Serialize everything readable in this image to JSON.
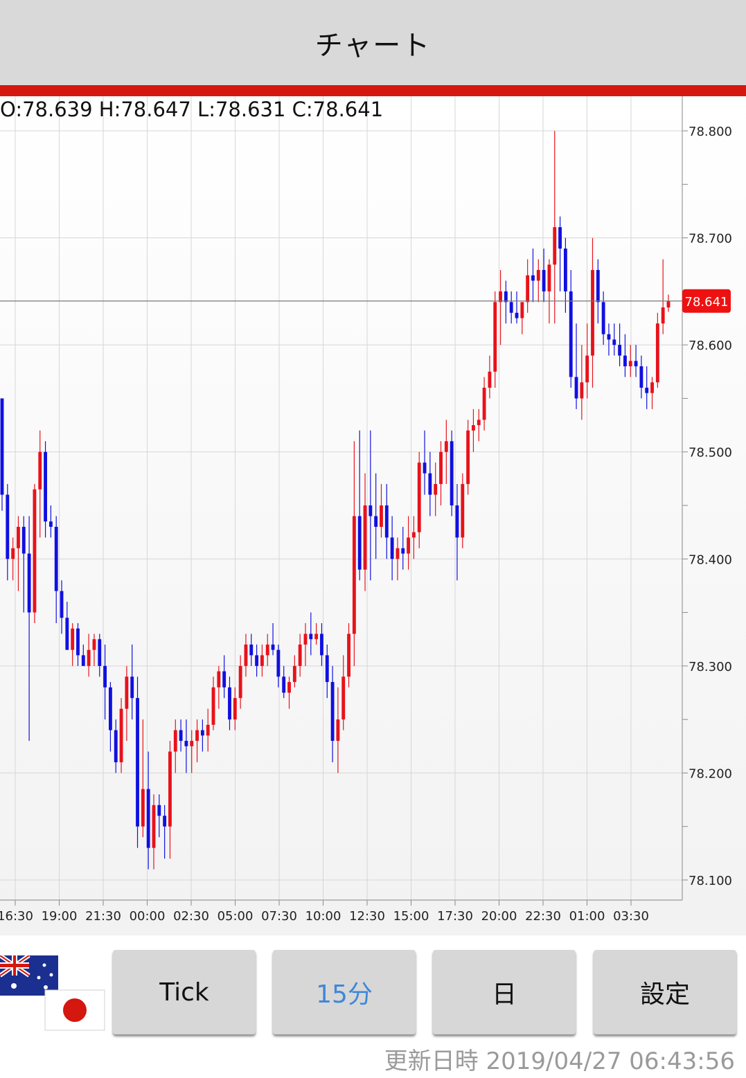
{
  "header": {
    "title": "チャート"
  },
  "ohlc": {
    "text": "O:78.639 H:78.647 L:78.631 C:78.641"
  },
  "colors": {
    "up": "#e8121a",
    "down": "#1010e0",
    "accent_bar": "#d4170f",
    "active_button": "#3e88d8"
  },
  "chart_data": {
    "type": "candlestick",
    "current_price": 78.641,
    "current_price_label": "78.641",
    "y_ticks": [
      "78.800",
      "78.700",
      "78.600",
      "78.500",
      "78.400",
      "78.300",
      "78.200",
      "78.100"
    ],
    "y_tick_values": [
      78.8,
      78.7,
      78.6,
      78.5,
      78.4,
      78.3,
      78.2,
      78.1
    ],
    "x_ticks": [
      "16:30",
      "19:00",
      "21:30",
      "00:00",
      "02:30",
      "05:00",
      "07:30",
      "10:00",
      "12:30",
      "15:00",
      "17:30",
      "20:00",
      "22:30",
      "01:00",
      "03:30"
    ],
    "ylim": [
      78.08,
      78.83
    ],
    "candles": [
      [
        78.55,
        78.55,
        78.445,
        78.46
      ],
      [
        78.46,
        78.47,
        78.38,
        78.4
      ],
      [
        78.4,
        78.42,
        78.38,
        78.41
      ],
      [
        78.41,
        78.44,
        78.37,
        78.43
      ],
      [
        78.43,
        78.44,
        78.35,
        78.405
      ],
      [
        78.405,
        78.44,
        78.23,
        78.35
      ],
      [
        78.35,
        78.47,
        78.34,
        78.465
      ],
      [
        78.465,
        78.52,
        78.42,
        78.5
      ],
      [
        78.5,
        78.51,
        78.42,
        78.435
      ],
      [
        78.435,
        78.45,
        78.42,
        78.43
      ],
      [
        78.43,
        78.44,
        78.34,
        78.37
      ],
      [
        78.37,
        78.38,
        78.33,
        78.345
      ],
      [
        78.345,
        78.36,
        78.32,
        78.315
      ],
      [
        78.315,
        78.34,
        78.3,
        78.335
      ],
      [
        78.335,
        78.34,
        78.3,
        78.31
      ],
      [
        78.31,
        78.32,
        78.3,
        78.3
      ],
      [
        78.3,
        78.33,
        78.29,
        78.315
      ],
      [
        78.315,
        78.33,
        78.3,
        78.325
      ],
      [
        78.325,
        78.33,
        78.29,
        78.3
      ],
      [
        78.3,
        78.32,
        78.25,
        78.28
      ],
      [
        78.28,
        78.285,
        78.22,
        78.24
      ],
      [
        78.24,
        78.25,
        78.2,
        78.21
      ],
      [
        78.21,
        78.27,
        78.2,
        78.26
      ],
      [
        78.26,
        78.3,
        78.23,
        78.29
      ],
      [
        78.29,
        78.32,
        78.25,
        78.27
      ],
      [
        78.27,
        78.29,
        78.13,
        78.15
      ],
      [
        78.15,
        78.25,
        78.14,
        78.185
      ],
      [
        78.185,
        78.22,
        78.11,
        78.13
      ],
      [
        78.13,
        78.18,
        78.11,
        78.17
      ],
      [
        78.17,
        78.18,
        78.14,
        78.16
      ],
      [
        78.16,
        78.17,
        78.12,
        78.15
      ],
      [
        78.15,
        78.23,
        78.12,
        78.22
      ],
      [
        78.22,
        78.25,
        78.2,
        78.24
      ],
      [
        78.24,
        78.25,
        78.22,
        78.23
      ],
      [
        78.23,
        78.25,
        78.2,
        78.225
      ],
      [
        78.225,
        78.24,
        78.2,
        78.23
      ],
      [
        78.23,
        78.25,
        78.21,
        78.24
      ],
      [
        78.24,
        78.25,
        78.22,
        78.235
      ],
      [
        78.235,
        78.26,
        78.22,
        78.245
      ],
      [
        78.245,
        78.29,
        78.24,
        78.28
      ],
      [
        78.28,
        78.3,
        78.26,
        78.295
      ],
      [
        78.295,
        78.31,
        78.27,
        78.28
      ],
      [
        78.28,
        78.29,
        78.24,
        78.25
      ],
      [
        78.25,
        78.28,
        78.24,
        78.27
      ],
      [
        78.27,
        78.31,
        78.26,
        78.3
      ],
      [
        78.3,
        78.33,
        78.29,
        78.32
      ],
      [
        78.32,
        78.33,
        78.3,
        78.31
      ],
      [
        78.31,
        78.32,
        78.29,
        78.3
      ],
      [
        78.3,
        78.32,
        78.29,
        78.31
      ],
      [
        78.31,
        78.33,
        78.3,
        78.32
      ],
      [
        78.32,
        78.34,
        78.31,
        78.315
      ],
      [
        78.315,
        78.32,
        78.28,
        78.29
      ],
      [
        78.29,
        78.3,
        78.27,
        78.275
      ],
      [
        78.275,
        78.29,
        78.26,
        78.285
      ],
      [
        78.285,
        78.31,
        78.28,
        78.3
      ],
      [
        78.3,
        78.33,
        78.29,
        78.32
      ],
      [
        78.32,
        78.34,
        78.3,
        78.33
      ],
      [
        78.33,
        78.35,
        78.31,
        78.325
      ],
      [
        78.325,
        78.34,
        78.32,
        78.33
      ],
      [
        78.33,
        78.34,
        78.3,
        78.31
      ],
      [
        78.31,
        78.32,
        78.27,
        78.285
      ],
      [
        78.285,
        78.3,
        78.21,
        78.23
      ],
      [
        78.23,
        78.28,
        78.2,
        78.25
      ],
      [
        78.25,
        78.31,
        78.24,
        78.29
      ],
      [
        78.29,
        78.34,
        78.28,
        78.33
      ],
      [
        78.33,
        78.51,
        78.3,
        78.44
      ],
      [
        78.44,
        78.52,
        78.38,
        78.39
      ],
      [
        78.39,
        78.48,
        78.37,
        78.45
      ],
      [
        78.45,
        78.52,
        78.38,
        78.44
      ],
      [
        78.44,
        78.48,
        78.4,
        78.43
      ],
      [
        78.43,
        78.47,
        78.42,
        78.45
      ],
      [
        78.45,
        78.47,
        78.4,
        78.42
      ],
      [
        78.42,
        78.44,
        78.38,
        78.4
      ],
      [
        78.4,
        78.42,
        78.38,
        78.41
      ],
      [
        78.41,
        78.43,
        78.39,
        78.405
      ],
      [
        78.405,
        78.44,
        78.39,
        78.42
      ],
      [
        78.42,
        78.44,
        78.4,
        78.425
      ],
      [
        78.425,
        78.5,
        78.41,
        78.49
      ],
      [
        78.49,
        78.52,
        78.46,
        78.48
      ],
      [
        78.48,
        78.5,
        78.44,
        78.46
      ],
      [
        78.46,
        78.49,
        78.44,
        78.47
      ],
      [
        78.47,
        78.51,
        78.45,
        78.5
      ],
      [
        78.5,
        78.53,
        78.47,
        78.51
      ],
      [
        78.51,
        78.52,
        78.44,
        78.45
      ],
      [
        78.45,
        78.47,
        78.38,
        78.42
      ],
      [
        78.42,
        78.48,
        78.41,
        78.47
      ],
      [
        78.47,
        78.53,
        78.46,
        78.52
      ],
      [
        78.52,
        78.54,
        78.5,
        78.525
      ],
      [
        78.525,
        78.54,
        78.51,
        78.53
      ],
      [
        78.53,
        78.57,
        78.52,
        78.56
      ],
      [
        78.56,
        78.59,
        78.55,
        78.575
      ],
      [
        78.575,
        78.65,
        78.56,
        78.64
      ],
      [
        78.64,
        78.67,
        78.6,
        78.65
      ],
      [
        78.65,
        78.66,
        78.62,
        78.64
      ],
      [
        78.64,
        78.65,
        78.62,
        78.63
      ],
      [
        78.63,
        78.65,
        78.62,
        78.625
      ],
      [
        78.625,
        78.64,
        78.61,
        78.64
      ],
      [
        78.64,
        78.68,
        78.63,
        78.665
      ],
      [
        78.665,
        78.69,
        78.64,
        78.66
      ],
      [
        78.66,
        78.68,
        78.64,
        78.67
      ],
      [
        78.67,
        78.69,
        78.64,
        78.65
      ],
      [
        78.65,
        78.68,
        78.62,
        78.675
      ],
      [
        78.675,
        78.8,
        78.62,
        78.71
      ],
      [
        78.71,
        78.72,
        78.65,
        78.69
      ],
      [
        78.69,
        78.7,
        78.63,
        78.65
      ],
      [
        78.65,
        78.67,
        78.56,
        78.57
      ],
      [
        78.57,
        78.62,
        78.54,
        78.55
      ],
      [
        78.55,
        78.6,
        78.53,
        78.565
      ],
      [
        78.565,
        78.62,
        78.55,
        78.59
      ],
      [
        78.59,
        78.7,
        78.56,
        78.67
      ],
      [
        78.67,
        78.68,
        78.62,
        78.64
      ],
      [
        78.64,
        78.65,
        78.6,
        78.61
      ],
      [
        78.61,
        78.62,
        78.59,
        78.605
      ],
      [
        78.605,
        78.62,
        78.59,
        78.6
      ],
      [
        78.6,
        78.62,
        78.58,
        78.59
      ],
      [
        78.59,
        78.61,
        78.57,
        78.58
      ],
      [
        78.58,
        78.6,
        78.57,
        78.585
      ],
      [
        78.585,
        78.6,
        78.57,
        78.58
      ],
      [
        78.58,
        78.59,
        78.55,
        78.56
      ],
      [
        78.56,
        78.58,
        78.54,
        78.555
      ],
      [
        78.555,
        78.57,
        78.54,
        78.565
      ],
      [
        78.565,
        78.63,
        78.56,
        78.62
      ],
      [
        78.62,
        78.68,
        78.61,
        78.635
      ],
      [
        78.635,
        78.647,
        78.631,
        78.641
      ]
    ]
  },
  "selector": {
    "flags": {
      "base": "AUD",
      "quote": "JPY"
    },
    "buttons": [
      {
        "label": "Tick",
        "active": false
      },
      {
        "label": "15分",
        "active": true
      },
      {
        "label": "日",
        "active": false
      },
      {
        "label": "設定",
        "active": false
      }
    ]
  },
  "footer": {
    "updated_label": "更新日時",
    "updated_value": "2019/04/27 06:43:56"
  }
}
